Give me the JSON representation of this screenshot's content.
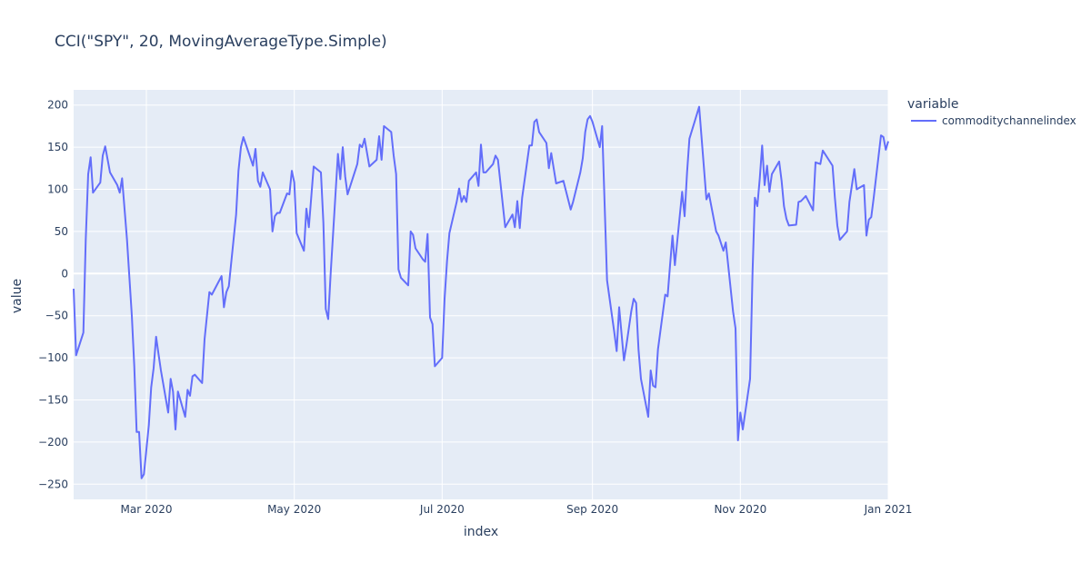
{
  "chart_data": {
    "type": "line",
    "title": "CCI(\"SPY\", 20, MovingAverageType.Simple)",
    "xlabel": "index",
    "ylabel": "value",
    "legend_title": "variable",
    "legend_position": "right",
    "grid": true,
    "x_range": [
      "2020-01-31",
      "2021-01-01"
    ],
    "ylim": [
      -268,
      218
    ],
    "y_ticks": [
      200,
      150,
      100,
      50,
      0,
      -50,
      -100,
      -150,
      -200,
      -250
    ],
    "x_ticks": [
      {
        "date": "2020-03-01",
        "label": "Mar 2020"
      },
      {
        "date": "2020-05-01",
        "label": "May 2020"
      },
      {
        "date": "2020-07-01",
        "label": "Jul 2020"
      },
      {
        "date": "2020-09-01",
        "label": "Sep 2020"
      },
      {
        "date": "2020-11-01",
        "label": "Nov 2020"
      },
      {
        "date": "2021-01-01",
        "label": "Jan 2021"
      }
    ],
    "series": [
      {
        "name": "commoditychannelindex",
        "color": "#636efa",
        "points": [
          [
            "2020-01-31",
            -18
          ],
          [
            "2020-02-01",
            -97
          ],
          [
            "2020-02-04",
            -70
          ],
          [
            "2020-02-05",
            40
          ],
          [
            "2020-02-06",
            118
          ],
          [
            "2020-02-07",
            138
          ],
          [
            "2020-02-08",
            96
          ],
          [
            "2020-02-11",
            108
          ],
          [
            "2020-02-12",
            140
          ],
          [
            "2020-02-13",
            151
          ],
          [
            "2020-02-15",
            120
          ],
          [
            "2020-02-18",
            105
          ],
          [
            "2020-02-19",
            96
          ],
          [
            "2020-02-20",
            113
          ],
          [
            "2020-02-22",
            40
          ],
          [
            "2020-02-24",
            -50
          ],
          [
            "2020-02-25",
            -110
          ],
          [
            "2020-02-26",
            -188
          ],
          [
            "2020-02-27",
            -188
          ],
          [
            "2020-02-28",
            -243
          ],
          [
            "2020-02-29",
            -238
          ],
          [
            "2020-03-02",
            -180
          ],
          [
            "2020-03-03",
            -135
          ],
          [
            "2020-03-04",
            -112
          ],
          [
            "2020-03-05",
            -75
          ],
          [
            "2020-03-06",
            -95
          ],
          [
            "2020-03-07",
            -115
          ],
          [
            "2020-03-10",
            -165
          ],
          [
            "2020-03-11",
            -125
          ],
          [
            "2020-03-12",
            -140
          ],
          [
            "2020-03-13",
            -185
          ],
          [
            "2020-03-14",
            -140
          ],
          [
            "2020-03-17",
            -170
          ],
          [
            "2020-03-18",
            -138
          ],
          [
            "2020-03-19",
            -145
          ],
          [
            "2020-03-20",
            -122
          ],
          [
            "2020-03-21",
            -120
          ],
          [
            "2020-03-24",
            -130
          ],
          [
            "2020-03-25",
            -78
          ],
          [
            "2020-03-27",
            -22
          ],
          [
            "2020-03-28",
            -25
          ],
          [
            "2020-04-01",
            -3
          ],
          [
            "2020-04-02",
            -40
          ],
          [
            "2020-04-03",
            -22
          ],
          [
            "2020-04-04",
            -15
          ],
          [
            "2020-04-07",
            70
          ],
          [
            "2020-04-08",
            122
          ],
          [
            "2020-04-09",
            150
          ],
          [
            "2020-04-10",
            162
          ],
          [
            "2020-04-14",
            128
          ],
          [
            "2020-04-15",
            148
          ],
          [
            "2020-04-16",
            110
          ],
          [
            "2020-04-17",
            103
          ],
          [
            "2020-04-18",
            120
          ],
          [
            "2020-04-21",
            100
          ],
          [
            "2020-04-22",
            50
          ],
          [
            "2020-04-23",
            68
          ],
          [
            "2020-04-24",
            72
          ],
          [
            "2020-04-25",
            72
          ],
          [
            "2020-04-28",
            95
          ],
          [
            "2020-04-29",
            94
          ],
          [
            "2020-04-30",
            122
          ],
          [
            "2020-05-01",
            108
          ],
          [
            "2020-05-02",
            48
          ],
          [
            "2020-05-05",
            27
          ],
          [
            "2020-05-06",
            77
          ],
          [
            "2020-05-07",
            55
          ],
          [
            "2020-05-08",
            90
          ],
          [
            "2020-05-09",
            127
          ],
          [
            "2020-05-12",
            120
          ],
          [
            "2020-05-13",
            60
          ],
          [
            "2020-05-14",
            -42
          ],
          [
            "2020-05-15",
            -54
          ],
          [
            "2020-05-16",
            0
          ],
          [
            "2020-05-19",
            142
          ],
          [
            "2020-05-20",
            112
          ],
          [
            "2020-05-21",
            150
          ],
          [
            "2020-05-22",
            115
          ],
          [
            "2020-05-23",
            94
          ],
          [
            "2020-05-27",
            130
          ],
          [
            "2020-05-28",
            153
          ],
          [
            "2020-05-29",
            150
          ],
          [
            "2020-05-30",
            160
          ],
          [
            "2020-06-01",
            127
          ],
          [
            "2020-06-04",
            135
          ],
          [
            "2020-06-05",
            163
          ],
          [
            "2020-06-06",
            135
          ],
          [
            "2020-06-07",
            175
          ],
          [
            "2020-06-10",
            168
          ],
          [
            "2020-06-11",
            140
          ],
          [
            "2020-06-12",
            118
          ],
          [
            "2020-06-13",
            5
          ],
          [
            "2020-06-14",
            -5
          ],
          [
            "2020-06-17",
            -14
          ],
          [
            "2020-06-18",
            50
          ],
          [
            "2020-06-19",
            46
          ],
          [
            "2020-06-20",
            30
          ],
          [
            "2020-06-23",
            17
          ],
          [
            "2020-06-24",
            14
          ],
          [
            "2020-06-25",
            47
          ],
          [
            "2020-06-26",
            -52
          ],
          [
            "2020-06-27",
            -60
          ],
          [
            "2020-06-28",
            -110
          ],
          [
            "2020-07-01",
            -100
          ],
          [
            "2020-07-02",
            -30
          ],
          [
            "2020-07-03",
            15
          ],
          [
            "2020-07-04",
            48
          ],
          [
            "2020-07-07",
            85
          ],
          [
            "2020-07-08",
            101
          ],
          [
            "2020-07-09",
            85
          ],
          [
            "2020-07-10",
            92
          ],
          [
            "2020-07-11",
            85
          ],
          [
            "2020-07-12",
            110
          ],
          [
            "2020-07-15",
            120
          ],
          [
            "2020-07-16",
            104
          ],
          [
            "2020-07-17",
            153
          ],
          [
            "2020-07-18",
            120
          ],
          [
            "2020-07-19",
            120
          ],
          [
            "2020-07-22",
            130
          ],
          [
            "2020-07-23",
            140
          ],
          [
            "2020-07-24",
            135
          ],
          [
            "2020-07-27",
            55
          ],
          [
            "2020-07-30",
            70
          ],
          [
            "2020-07-31",
            55
          ],
          [
            "2020-08-01",
            86
          ],
          [
            "2020-08-02",
            54
          ],
          [
            "2020-08-03",
            90
          ],
          [
            "2020-08-06",
            152
          ],
          [
            "2020-08-07",
            152
          ],
          [
            "2020-08-08",
            180
          ],
          [
            "2020-08-09",
            183
          ],
          [
            "2020-08-10",
            168
          ],
          [
            "2020-08-13",
            155
          ],
          [
            "2020-08-14",
            125
          ],
          [
            "2020-08-15",
            143
          ],
          [
            "2020-08-17",
            107
          ],
          [
            "2020-08-20",
            110
          ],
          [
            "2020-08-23",
            76
          ],
          [
            "2020-08-24",
            85
          ],
          [
            "2020-08-27",
            120
          ],
          [
            "2020-08-28",
            137
          ],
          [
            "2020-08-29",
            168
          ],
          [
            "2020-08-30",
            183
          ],
          [
            "2020-08-31",
            187
          ],
          [
            "2020-09-01",
            180
          ],
          [
            "2020-09-04",
            150
          ],
          [
            "2020-09-05",
            175
          ],
          [
            "2020-09-07",
            -8
          ],
          [
            "2020-09-10",
            -70
          ],
          [
            "2020-09-11",
            -92
          ],
          [
            "2020-09-12",
            -40
          ],
          [
            "2020-09-14",
            -103
          ],
          [
            "2020-09-15",
            -85
          ],
          [
            "2020-09-17",
            -45
          ],
          [
            "2020-09-18",
            -30
          ],
          [
            "2020-09-19",
            -35
          ],
          [
            "2020-09-20",
            -90
          ],
          [
            "2020-09-21",
            -125
          ],
          [
            "2020-09-24",
            -170
          ],
          [
            "2020-09-25",
            -115
          ],
          [
            "2020-09-26",
            -133
          ],
          [
            "2020-09-27",
            -135
          ],
          [
            "2020-09-28",
            -90
          ],
          [
            "2020-10-01",
            -25
          ],
          [
            "2020-10-02",
            -27
          ],
          [
            "2020-10-03",
            10
          ],
          [
            "2020-10-04",
            45
          ],
          [
            "2020-10-05",
            10
          ],
          [
            "2020-10-08",
            97
          ],
          [
            "2020-10-09",
            68
          ],
          [
            "2020-10-10",
            120
          ],
          [
            "2020-10-11",
            160
          ],
          [
            "2020-10-15",
            198
          ],
          [
            "2020-10-18",
            88
          ],
          [
            "2020-10-19",
            95
          ],
          [
            "2020-10-22",
            50
          ],
          [
            "2020-10-23",
            45
          ],
          [
            "2020-10-25",
            27
          ],
          [
            "2020-10-26",
            37
          ],
          [
            "2020-10-29",
            -45
          ],
          [
            "2020-10-30",
            -65
          ],
          [
            "2020-10-31",
            -198
          ],
          [
            "2020-11-01",
            -165
          ],
          [
            "2020-11-02",
            -185
          ],
          [
            "2020-11-05",
            -125
          ],
          [
            "2020-11-06",
            0
          ],
          [
            "2020-11-07",
            90
          ],
          [
            "2020-11-08",
            80
          ],
          [
            "2020-11-09",
            113
          ],
          [
            "2020-11-10",
            152
          ],
          [
            "2020-11-11",
            105
          ],
          [
            "2020-11-12",
            128
          ],
          [
            "2020-11-13",
            97
          ],
          [
            "2020-11-14",
            118
          ],
          [
            "2020-11-17",
            133
          ],
          [
            "2020-11-18",
            110
          ],
          [
            "2020-11-19",
            80
          ],
          [
            "2020-11-20",
            65
          ],
          [
            "2020-11-21",
            57
          ],
          [
            "2020-11-24",
            58
          ],
          [
            "2020-11-25",
            85
          ],
          [
            "2020-11-26",
            86
          ],
          [
            "2020-11-28",
            92
          ],
          [
            "2020-12-01",
            75
          ],
          [
            "2020-12-02",
            132
          ],
          [
            "2020-12-04",
            130
          ],
          [
            "2020-12-05",
            146
          ],
          [
            "2020-12-09",
            128
          ],
          [
            "2020-12-10",
            90
          ],
          [
            "2020-12-11",
            57
          ],
          [
            "2020-12-12",
            40
          ],
          [
            "2020-12-15",
            50
          ],
          [
            "2020-12-16",
            85
          ],
          [
            "2020-12-18",
            124
          ],
          [
            "2020-12-19",
            100
          ],
          [
            "2020-12-22",
            105
          ],
          [
            "2020-12-23",
            45
          ],
          [
            "2020-12-24",
            64
          ],
          [
            "2020-12-25",
            67
          ],
          [
            "2020-12-26",
            90
          ],
          [
            "2020-12-29",
            164
          ],
          [
            "2020-12-30",
            162
          ],
          [
            "2020-12-31",
            147
          ],
          [
            "2021-01-01",
            157
          ]
        ]
      }
    ]
  }
}
